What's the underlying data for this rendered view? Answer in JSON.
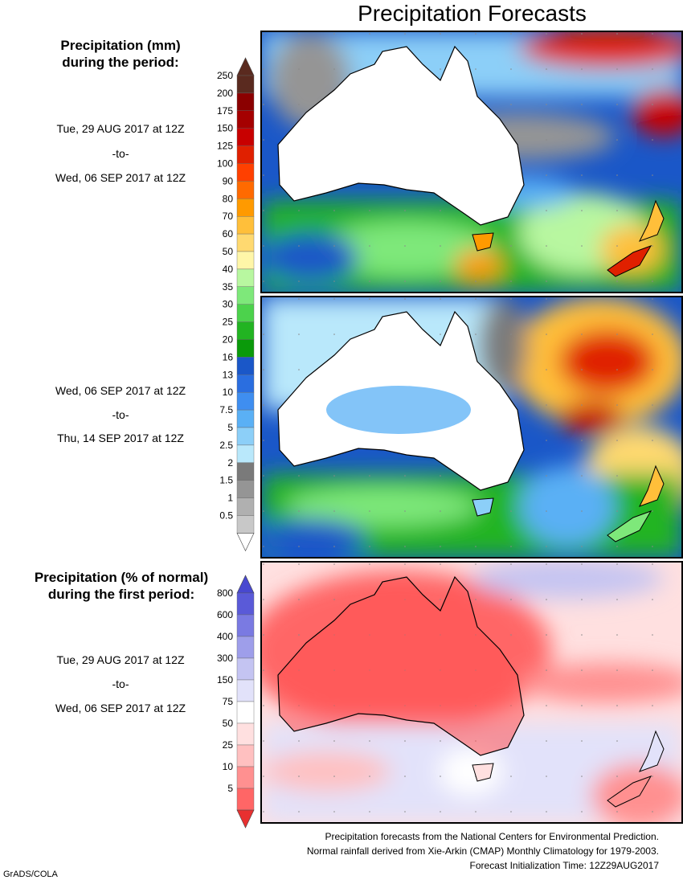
{
  "title": "Precipitation Forecasts",
  "colorbar_amount": {
    "heading_line1": "Precipitation (mm)",
    "heading_line2": "during the period:",
    "labels": [
      "250",
      "200",
      "175",
      "150",
      "125",
      "100",
      "90",
      "80",
      "70",
      "60",
      "50",
      "40",
      "35",
      "30",
      "25",
      "20",
      "16",
      "13",
      "10",
      "7.5",
      "5",
      "2.5",
      "2",
      "1.5",
      "1",
      "0.5"
    ],
    "colors": [
      "#5a2a1f",
      "#8b0000",
      "#a50000",
      "#c80000",
      "#e02000",
      "#ff4000",
      "#ff6a00",
      "#ff9a00",
      "#ffbf3a",
      "#ffd970",
      "#fff6a8",
      "#b8f7a0",
      "#7ee87a",
      "#4cd24c",
      "#22b422",
      "#0a9a0a",
      "#1a57c8",
      "#2a6ee0",
      "#3f8ef0",
      "#5ab0f5",
      "#8ccff8",
      "#b9e8fb",
      "#7a7a7a",
      "#959595",
      "#b0b0b0",
      "#c8c8c8"
    ],
    "top_arrow_color": "#5a2a1f",
    "bottom_arrow_color": "#ffffff"
  },
  "periods": [
    {
      "start": "Tue, 29 AUG 2017 at 12Z",
      "sep": "-to-",
      "end": "Wed, 06 SEP 2017 at 12Z"
    },
    {
      "start": "Wed, 06 SEP 2017 at 12Z",
      "sep": "-to-",
      "end": "Thu, 14 SEP 2017 at 12Z"
    },
    {
      "start": "Tue, 29 AUG 2017 at 12Z",
      "sep": "-to-",
      "end": "Wed, 06 SEP 2017 at 12Z"
    }
  ],
  "colorbar_percent": {
    "heading_line1": "Precipitation (% of normal)",
    "heading_line2": "during the first period:",
    "labels": [
      "800",
      "600",
      "400",
      "300",
      "150",
      "75",
      "50",
      "25",
      "10",
      "5"
    ],
    "colors": [
      "#5a5ad8",
      "#7a7ae2",
      "#9e9eea",
      "#c4c4f2",
      "#e2e2fa",
      "#ffffff",
      "#ffe0e0",
      "#ffc0c0",
      "#ff9090",
      "#ff6666"
    ],
    "top_arrow_color": "#4848d0",
    "bottom_arrow_color": "#e83030"
  },
  "footer": {
    "line1": "Precipitation forecasts from the National Centers for Environmental Prediction.",
    "line2": "Normal rainfall derived from Xie-Arkin (CMAP) Monthly Climatology for 1979-2003.",
    "line3": "Forecast Initialization Time: 12Z29AUG2017"
  },
  "credit": "GrADS/COLA"
}
